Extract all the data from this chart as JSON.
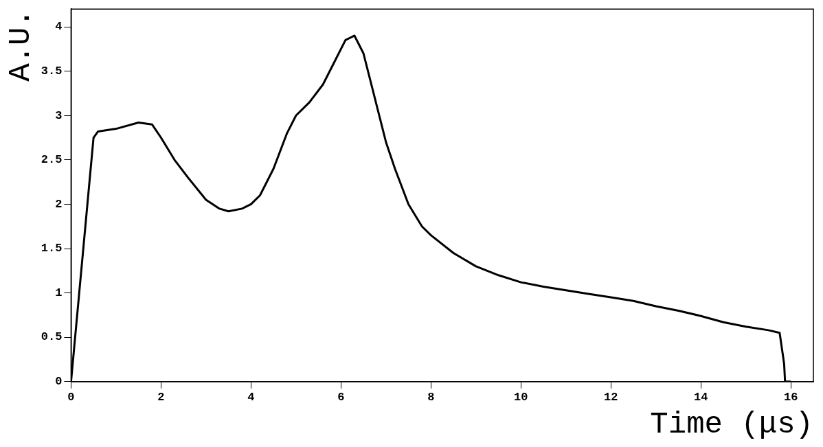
{
  "chart_data": {
    "type": "line",
    "xlabel": "Time (μs)",
    "ylabel": "A.U.",
    "x": [
      0,
      0.5,
      0.6,
      1.0,
      1.5,
      1.8,
      2.0,
      2.3,
      2.6,
      3.0,
      3.3,
      3.5,
      3.8,
      4.0,
      4.2,
      4.5,
      4.8,
      5.0,
      5.3,
      5.6,
      5.9,
      6.1,
      6.3,
      6.5,
      6.7,
      6.9,
      7.0,
      7.2,
      7.5,
      7.8,
      8.0,
      8.5,
      9.0,
      9.5,
      10,
      10.5,
      11,
      11.5,
      12,
      12.5,
      13,
      13.5,
      14,
      14.5,
      15,
      15.5,
      15.75,
      15.85,
      15.87,
      16.0
    ],
    "series": [
      {
        "color": "#000000",
        "values": [
          0,
          2.75,
          2.82,
          2.85,
          2.92,
          2.9,
          2.75,
          2.5,
          2.3,
          2.05,
          1.95,
          1.92,
          1.95,
          2.0,
          2.1,
          2.4,
          2.8,
          3.0,
          3.15,
          3.35,
          3.65,
          3.85,
          3.9,
          3.7,
          3.3,
          2.9,
          2.7,
          2.4,
          2.0,
          1.75,
          1.65,
          1.45,
          1.3,
          1.2,
          1.12,
          1.07,
          1.03,
          0.99,
          0.95,
          0.91,
          0.85,
          0.8,
          0.74,
          0.67,
          0.62,
          0.58,
          0.55,
          0.2,
          0,
          0
        ]
      }
    ],
    "xlim": [
      0,
      16.5
    ],
    "ylim": [
      0,
      4.2
    ],
    "xticks": [
      0,
      2,
      4,
      6,
      8,
      10,
      12,
      14,
      16
    ],
    "yticks": [
      0,
      0.5,
      1,
      1.5,
      2,
      2.5,
      3,
      3.5,
      4
    ],
    "grid": false,
    "legend": false
  }
}
